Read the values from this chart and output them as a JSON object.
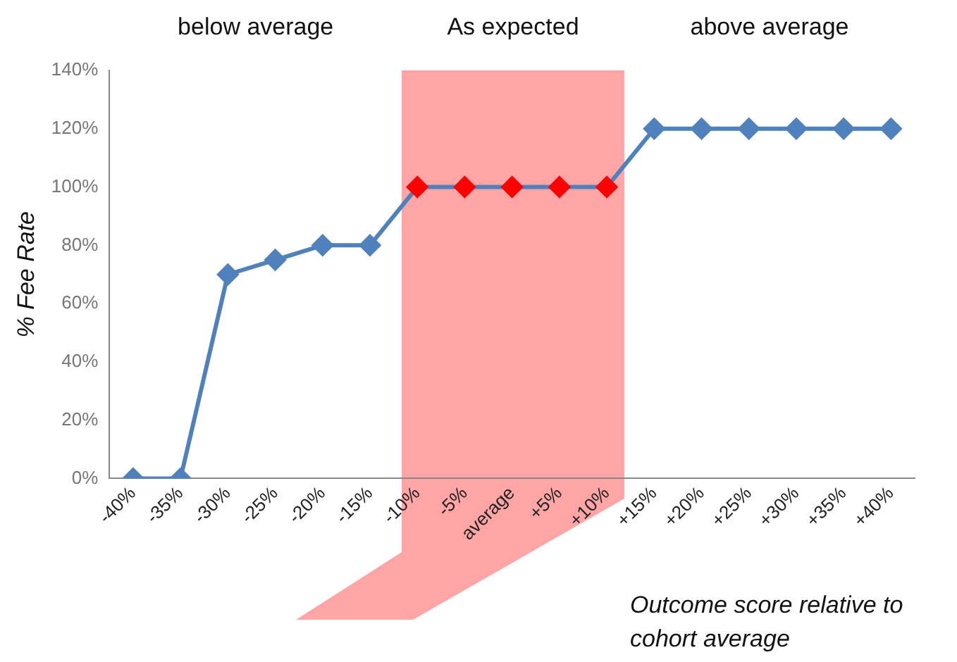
{
  "chart_data": {
    "type": "line",
    "ylabel": "% Fee Rate",
    "xlabel": "Outcome score relative to cohort average",
    "categories": [
      "-40%",
      "-35%",
      "-30%",
      "-25%",
      "-20%",
      "-15%",
      "-10%",
      "-5%",
      "average",
      "+5%",
      "+10%",
      "+15%",
      "+20%",
      "+25%",
      "+30%",
      "+35%",
      "+40%"
    ],
    "series": [
      {
        "color": "#4f81bd",
        "colors": [
          "#4f81bd",
          "#4f81bd",
          "#4f81bd",
          "#4f81bd",
          "#4f81bd",
          "#4f81bd",
          "#ff0000",
          "#ff0000",
          "#ff0000",
          "#ff0000",
          "#ff0000",
          "#4f81bd",
          "#4f81bd",
          "#4f81bd",
          "#4f81bd",
          "#4f81bd",
          "#4f81bd"
        ],
        "values": [
          0,
          0,
          70,
          75,
          80,
          80,
          100,
          100,
          100,
          100,
          100,
          120,
          120,
          120,
          120,
          120,
          120
        ]
      }
    ],
    "ylim": [
      0,
      140
    ],
    "yticks": [
      {
        "value": 0,
        "label": "0%"
      },
      {
        "value": 20,
        "label": "20%"
      },
      {
        "value": 40,
        "label": "40%"
      },
      {
        "value": 60,
        "label": "60%"
      },
      {
        "value": 80,
        "label": "80%"
      },
      {
        "value": 100,
        "label": "100%"
      },
      {
        "value": 120,
        "label": "120%"
      },
      {
        "value": 140,
        "label": "140%"
      }
    ],
    "bands": [
      {
        "axis": "x",
        "from": "-10%",
        "to": "+10%",
        "color": "#ffa5a5"
      }
    ],
    "annotations": [
      "below average",
      "As expected",
      "above average"
    ],
    "marker": "diamond",
    "grid": false,
    "legend": false
  }
}
